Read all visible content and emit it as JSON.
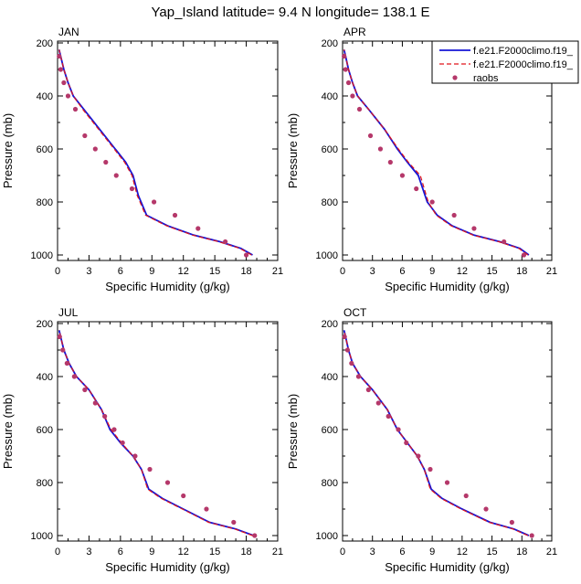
{
  "title": "Yap_Island  latitude= 9.4 N longitude= 138.1 E",
  "colors": {
    "model1": "#1515d6",
    "model2": "#e0141a",
    "obs": "#b5386a"
  },
  "legend": {
    "placement": "top-right of APR panel",
    "entries": [
      {
        "label": "f.e21.F2000climo.f19_",
        "style": "solid-blue-line"
      },
      {
        "label": "f.e21.F2000climo.f19_",
        "style": "dashed-red-line"
      },
      {
        "label": "raobs",
        "style": "dots"
      }
    ]
  },
  "axes": {
    "xlabel": "Specific Humidity (g/kg)",
    "ylabel": "Pressure (mb)",
    "xlim": [
      0,
      21
    ],
    "ylim": [
      1000,
      200
    ],
    "xticks": [
      "0",
      "3",
      "6",
      "9",
      "12",
      "15",
      "18",
      "21"
    ],
    "yticks": [
      "200",
      "400",
      "600",
      "800",
      "1000"
    ]
  },
  "chart_data": [
    {
      "type": "line",
      "label": "JAN",
      "series": [
        {
          "name": "f.e21.F2000climo.f19_",
          "style": "solid",
          "x": [
            18.6,
            17.5,
            15.5,
            13.0,
            10.5,
            8.5,
            7.7,
            7.2,
            6.5,
            5.5,
            4.0,
            2.5,
            1.5,
            1.0,
            0.6,
            0.3,
            0.15
          ],
          "y": [
            1000,
            975,
            950,
            925,
            890,
            850,
            775,
            700,
            650,
            600,
            525,
            450,
            400,
            350,
            300,
            250,
            225
          ]
        },
        {
          "name": "f.e21.F2000climo.f19_",
          "style": "dashed",
          "x": [
            18.5,
            17.4,
            15.4,
            12.9,
            10.4,
            8.4,
            7.6,
            7.1,
            6.4,
            5.4,
            3.9,
            2.4,
            1.5,
            1.0,
            0.6,
            0.3,
            0.15
          ],
          "y": [
            1000,
            975,
            950,
            925,
            890,
            850,
            775,
            700,
            650,
            600,
            525,
            450,
            400,
            350,
            300,
            250,
            225
          ]
        },
        {
          "name": "raobs",
          "style": "dots",
          "x": [
            18.0,
            16.0,
            13.4,
            11.2,
            9.2,
            7.1,
            5.6,
            4.6,
            3.6,
            2.6,
            1.7,
            1.0,
            0.6,
            0.3,
            0.15
          ],
          "y": [
            1000,
            950,
            900,
            850,
            800,
            750,
            700,
            650,
            600,
            550,
            450,
            400,
            350,
            300,
            250
          ]
        }
      ]
    },
    {
      "type": "line",
      "label": "APR",
      "series": [
        {
          "name": "f.e21.F2000climo.f19_",
          "style": "solid",
          "x": [
            18.7,
            17.8,
            15.8,
            13.2,
            11.0,
            9.5,
            8.5,
            7.6,
            6.5,
            5.5,
            4.2,
            2.6,
            1.5,
            1.0,
            0.6,
            0.3,
            0.15
          ],
          "y": [
            1000,
            975,
            950,
            925,
            890,
            850,
            800,
            700,
            650,
            600,
            525,
            450,
            400,
            350,
            300,
            250,
            225
          ]
        },
        {
          "name": "f.e21.F2000climo.f19_",
          "style": "dashed",
          "x": [
            18.6,
            17.7,
            15.7,
            13.1,
            10.9,
            9.4,
            8.6,
            7.8,
            6.6,
            5.6,
            4.2,
            2.6,
            1.5,
            1.0,
            0.6,
            0.3,
            0.15
          ],
          "y": [
            1000,
            975,
            950,
            925,
            890,
            850,
            800,
            700,
            650,
            600,
            525,
            450,
            400,
            350,
            300,
            250,
            225
          ]
        },
        {
          "name": "raobs",
          "style": "dots",
          "x": [
            18.2,
            16.2,
            13.2,
            11.2,
            9.0,
            7.4,
            6.0,
            4.8,
            3.8,
            2.8,
            1.7,
            1.0,
            0.6,
            0.3,
            0.15
          ],
          "y": [
            1000,
            950,
            900,
            850,
            800,
            750,
            700,
            650,
            600,
            550,
            450,
            400,
            350,
            300,
            250
          ]
        }
      ]
    },
    {
      "type": "line",
      "label": "JUL",
      "series": [
        {
          "name": "f.e21.F2000climo.f19_",
          "style": "solid",
          "x": [
            18.7,
            17.0,
            14.5,
            12.0,
            10.0,
            8.7,
            8.0,
            7.2,
            6.0,
            5.0,
            4.2,
            3.0,
            1.8,
            1.1,
            0.6,
            0.3,
            0.15
          ],
          "y": [
            1000,
            975,
            950,
            900,
            860,
            825,
            750,
            700,
            650,
            600,
            525,
            450,
            400,
            350,
            300,
            250,
            225
          ]
        },
        {
          "name": "f.e21.F2000climo.f19_",
          "style": "dashed",
          "x": [
            18.6,
            16.9,
            14.4,
            11.9,
            9.9,
            8.6,
            8.0,
            7.2,
            6.1,
            5.1,
            4.2,
            3.0,
            1.8,
            1.1,
            0.6,
            0.3,
            0.15
          ],
          "y": [
            1000,
            975,
            950,
            900,
            860,
            825,
            750,
            700,
            650,
            600,
            525,
            450,
            400,
            350,
            300,
            250,
            225
          ]
        },
        {
          "name": "raobs",
          "style": "dots",
          "x": [
            18.8,
            16.8,
            14.2,
            12.0,
            10.5,
            8.8,
            7.4,
            6.2,
            5.4,
            4.5,
            3.6,
            2.6,
            1.6,
            0.9,
            0.5,
            0.2
          ],
          "y": [
            1000,
            950,
            900,
            850,
            800,
            750,
            700,
            650,
            600,
            550,
            500,
            450,
            400,
            350,
            300,
            250
          ]
        }
      ]
    },
    {
      "type": "line",
      "label": "OCT",
      "series": [
        {
          "name": "f.e21.F2000climo.f19_",
          "style": "solid",
          "x": [
            18.7,
            17.2,
            14.8,
            12.0,
            10.0,
            8.9,
            8.2,
            7.5,
            6.5,
            5.5,
            4.5,
            3.0,
            1.8,
            1.0,
            0.6,
            0.3,
            0.15
          ],
          "y": [
            1000,
            975,
            950,
            900,
            860,
            825,
            750,
            700,
            650,
            600,
            525,
            450,
            400,
            350,
            300,
            250,
            225
          ]
        },
        {
          "name": "f.e21.F2000climo.f19_",
          "style": "dashed",
          "x": [
            18.6,
            17.1,
            14.7,
            11.9,
            9.9,
            8.8,
            8.2,
            7.5,
            6.5,
            5.5,
            4.5,
            3.0,
            1.8,
            1.0,
            0.6,
            0.3,
            0.15
          ],
          "y": [
            1000,
            975,
            950,
            900,
            860,
            825,
            750,
            700,
            650,
            600,
            525,
            450,
            400,
            350,
            300,
            250,
            225
          ]
        },
        {
          "name": "raobs",
          "style": "dots",
          "x": [
            19.0,
            17.0,
            14.4,
            12.4,
            10.5,
            8.8,
            7.6,
            6.4,
            5.6,
            4.6,
            3.6,
            2.6,
            1.6,
            0.9,
            0.5,
            0.2
          ],
          "y": [
            1000,
            950,
            900,
            850,
            800,
            750,
            700,
            650,
            600,
            550,
            500,
            450,
            400,
            350,
            300,
            250
          ]
        }
      ]
    }
  ]
}
